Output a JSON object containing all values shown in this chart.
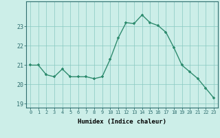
{
  "x": [
    0,
    1,
    2,
    3,
    4,
    5,
    6,
    7,
    8,
    9,
    10,
    11,
    12,
    13,
    14,
    15,
    16,
    17,
    18,
    19,
    20,
    21,
    22,
    23
  ],
  "y": [
    21.0,
    21.0,
    20.5,
    20.4,
    20.8,
    20.4,
    20.4,
    20.4,
    20.3,
    20.4,
    21.3,
    22.4,
    23.2,
    23.15,
    23.6,
    23.2,
    23.05,
    22.7,
    21.9,
    21.0,
    20.65,
    20.3,
    19.8,
    19.3
  ],
  "line_color": "#2e8b6e",
  "marker": "+",
  "marker_color": "#2e8b6e",
  "bg_color": "#cceee8",
  "grid_color": "#88c8c0",
  "axis_color": "#2e6e6e",
  "xlabel": "Humidex (Indice chaleur)",
  "xlim": [
    -0.5,
    23.5
  ],
  "ylim": [
    18.8,
    24.3
  ],
  "yticks": [
    19,
    20,
    21,
    22,
    23
  ],
  "xticks": [
    0,
    1,
    2,
    3,
    4,
    5,
    6,
    7,
    8,
    9,
    10,
    11,
    12,
    13,
    14,
    15,
    16,
    17,
    18,
    19,
    20,
    21,
    22,
    23
  ],
  "xtick_labels": [
    "0",
    "1",
    "2",
    "3",
    "4",
    "5",
    "6",
    "7",
    "8",
    "9",
    "10",
    "11",
    "12",
    "13",
    "14",
    "15",
    "16",
    "17",
    "18",
    "19",
    "20",
    "21",
    "22",
    "23"
  ],
  "linewidth": 1.0,
  "markersize": 3.5
}
